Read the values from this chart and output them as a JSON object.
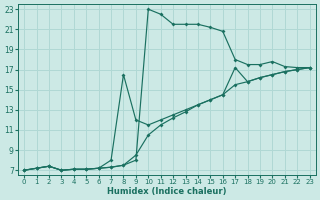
{
  "xlabel": "Humidex (Indice chaleur)",
  "background_color": "#cce9e5",
  "grid_color": "#b0d8d4",
  "line_color": "#1a7060",
  "xlim": [
    -0.5,
    23.5
  ],
  "ylim": [
    6.5,
    23.5
  ],
  "xticks": [
    0,
    1,
    2,
    3,
    4,
    5,
    6,
    7,
    8,
    9,
    10,
    11,
    12,
    13,
    14,
    15,
    16,
    17,
    18,
    19,
    20,
    21,
    22,
    23
  ],
  "yticks": [
    7,
    9,
    11,
    13,
    15,
    17,
    19,
    21,
    23
  ],
  "curve_top_x": [
    0,
    1,
    2,
    3,
    4,
    5,
    6,
    7,
    8,
    9,
    10,
    11,
    12,
    13,
    14,
    15,
    16,
    17,
    18,
    19,
    20,
    21,
    22,
    23
  ],
  "curve_top_y": [
    7.0,
    7.2,
    7.4,
    7.0,
    7.1,
    7.1,
    7.2,
    7.3,
    7.5,
    8.0,
    23.0,
    22.5,
    21.5,
    21.5,
    21.5,
    21.2,
    20.8,
    18.0,
    17.5,
    17.5,
    17.8,
    17.3,
    17.2,
    17.2
  ],
  "curve_mid_x": [
    0,
    1,
    2,
    3,
    4,
    5,
    6,
    7,
    8,
    9,
    10,
    11,
    12,
    13,
    14,
    15,
    16,
    17,
    18,
    19,
    20,
    21,
    22,
    23
  ],
  "curve_mid_y": [
    7.0,
    7.2,
    7.4,
    7.0,
    7.1,
    7.1,
    7.2,
    8.0,
    16.5,
    12.0,
    11.5,
    12.0,
    12.5,
    13.0,
    13.5,
    14.0,
    14.5,
    17.2,
    15.8,
    16.2,
    16.5,
    16.8,
    17.0,
    17.2
  ],
  "curve_bot_x": [
    0,
    1,
    2,
    3,
    4,
    5,
    6,
    7,
    8,
    9,
    10,
    11,
    12,
    13,
    14,
    15,
    16,
    17,
    18,
    19,
    20,
    21,
    22,
    23
  ],
  "curve_bot_y": [
    7.0,
    7.2,
    7.4,
    7.0,
    7.1,
    7.1,
    7.2,
    7.3,
    7.5,
    8.5,
    10.5,
    11.5,
    12.2,
    12.8,
    13.5,
    14.0,
    14.5,
    15.5,
    15.8,
    16.2,
    16.5,
    16.8,
    17.0,
    17.2
  ]
}
